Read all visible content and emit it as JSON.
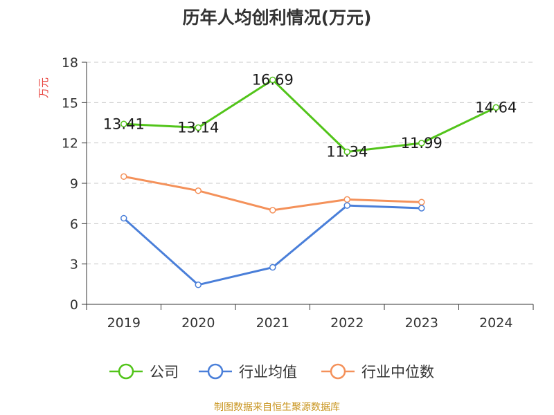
{
  "title": "历年人均创利情况(万元)",
  "unit_label": "万元",
  "source_note": "制图数据来自恒生聚源数据库",
  "chart_data": {
    "type": "line",
    "title": "历年人均创利情况(万元)",
    "ylabel": "万元",
    "xlabel": "",
    "categories": [
      "2019",
      "2020",
      "2021",
      "2022",
      "2023",
      "2024"
    ],
    "ylim": [
      0,
      18
    ],
    "yticks": [
      0,
      3,
      6,
      9,
      12,
      15,
      18
    ],
    "grid": "horizontal dashed",
    "legend_position": "bottom",
    "series": [
      {
        "name": "公司",
        "color": "#52c41a",
        "values": [
          13.41,
          13.14,
          16.69,
          11.34,
          11.99,
          14.64
        ],
        "labels": [
          "13.41",
          "13.14",
          "16.69",
          "11.34",
          "11.99",
          "14.64"
        ]
      },
      {
        "name": "行业均值",
        "color": "#4a7fd9",
        "values": [
          6.4,
          1.45,
          2.75,
          7.35,
          7.15,
          null
        ]
      },
      {
        "name": "行业中位数",
        "color": "#f4915a",
        "values": [
          9.5,
          8.45,
          7.0,
          7.8,
          7.6,
          null
        ]
      }
    ]
  }
}
